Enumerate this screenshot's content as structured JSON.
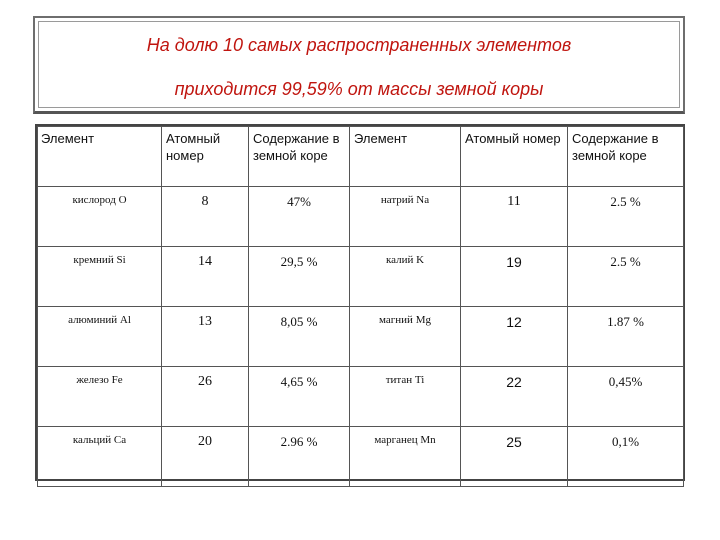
{
  "title": {
    "line1": "На долю 10 самых распространенных элементов",
    "line2": "приходится 99,59% от массы земной коры"
  },
  "colors": {
    "title": "#c0150f",
    "border": "#555555"
  },
  "table": {
    "headers": [
      "Элемент",
      "Атомный номер",
      "Содержание в земной коре",
      "Элемент",
      "Атомный номер",
      "Содержание в земной коре"
    ],
    "rows": [
      [
        "кислород O",
        "8",
        "47%",
        "натрий Na",
        "11",
        "2.5 %"
      ],
      [
        "кремний Si",
        "14",
        "29,5 %",
        "калий K",
        "19",
        "2.5 %"
      ],
      [
        "алюминий Al",
        "13",
        "8,05 %",
        "магний Mg",
        "12",
        "1.87 %"
      ],
      [
        "железо Fe",
        "26",
        "4,65 %",
        "титан Ti",
        "22",
        "0,45%"
      ],
      [
        "кальций Ca",
        "20",
        "2.96 %",
        "марганец Mn",
        "25",
        "0,1%"
      ]
    ]
  }
}
